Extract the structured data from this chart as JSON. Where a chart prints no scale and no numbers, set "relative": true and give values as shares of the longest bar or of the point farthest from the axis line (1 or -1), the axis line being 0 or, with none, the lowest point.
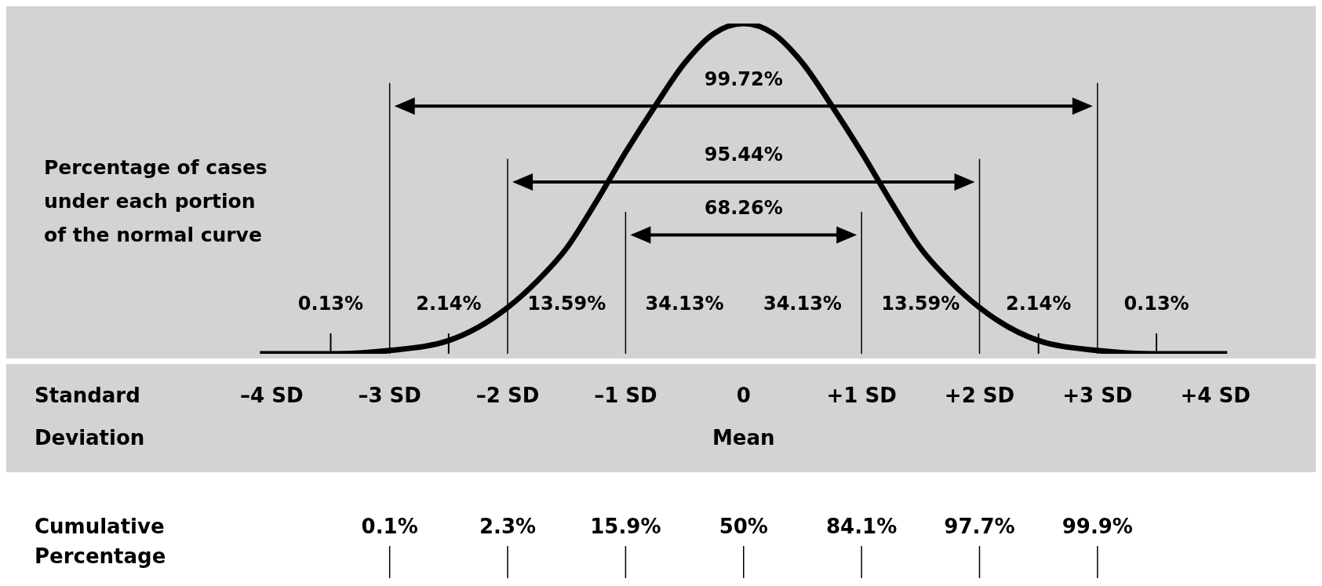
{
  "chart_data": {
    "type": "line",
    "relative": true,
    "xlabel": "Standard Deviation",
    "x": [
      -4.1,
      -3.5,
      -3,
      -2.5,
      -2,
      -1.75,
      -1.5,
      -1.25,
      -1,
      -0.75,
      -0.5,
      -0.25,
      0,
      0.25,
      0.5,
      0.75,
      1,
      1.25,
      1.5,
      1.75,
      2,
      2.5,
      3,
      3.5,
      4.1
    ],
    "series": [
      {
        "color": "#000000",
        "values": [
          0,
          0,
          0.01,
          0.04,
          0.14,
          0.22,
          0.32,
          0.46,
          0.61,
          0.75,
          0.88,
          0.97,
          1,
          0.97,
          0.88,
          0.75,
          0.61,
          0.46,
          0.32,
          0.22,
          0.14,
          0.04,
          0.01,
          0,
          0
        ]
      }
    ],
    "xlim": [
      -6.25,
      4.85
    ],
    "xticks": [
      {
        "value": -4,
        "label": "–4 SD"
      },
      {
        "value": -3,
        "label": "–3 SD"
      },
      {
        "value": -2,
        "label": "–2 SD"
      },
      {
        "value": -1,
        "label": "–1 SD"
      },
      {
        "value": 0,
        "label": "0\nMean"
      },
      {
        "value": 1,
        "label": "+1 SD"
      },
      {
        "value": 2,
        "label": "+2 SD"
      },
      {
        "value": 3,
        "label": "+3 SD"
      },
      {
        "value": 4,
        "label": "+4 SD"
      }
    ],
    "marker": "none",
    "line_style": "solid",
    "ref_lines": [
      {
        "axis": "x",
        "value": -3
      },
      {
        "axis": "x",
        "value": -2
      },
      {
        "axis": "x",
        "value": -1
      },
      {
        "axis": "x",
        "value": 1
      },
      {
        "axis": "x",
        "value": 2
      },
      {
        "axis": "x",
        "value": 3
      }
    ],
    "annotations": [
      "Percentage of cases under each portion of the normal curve",
      "Cumulative Percentage",
      "99.72%",
      "95.44%",
      "68.26%",
      "0.13%",
      "2.14%",
      "13.59%",
      "34.13%",
      "34.13%",
      "13.59%",
      "2.14%",
      "0.13%",
      {
        "text": "0.1%",
        "x": -3
      },
      {
        "text": "2.3%",
        "x": -2
      },
      {
        "text": "15.9%",
        "x": -1
      },
      {
        "text": "50%",
        "x": 0
      },
      {
        "text": "84.1%",
        "x": 1
      },
      {
        "text": "97.7%",
        "x": 2
      },
      {
        "text": "99.9%",
        "x": 3
      }
    ]
  }
}
